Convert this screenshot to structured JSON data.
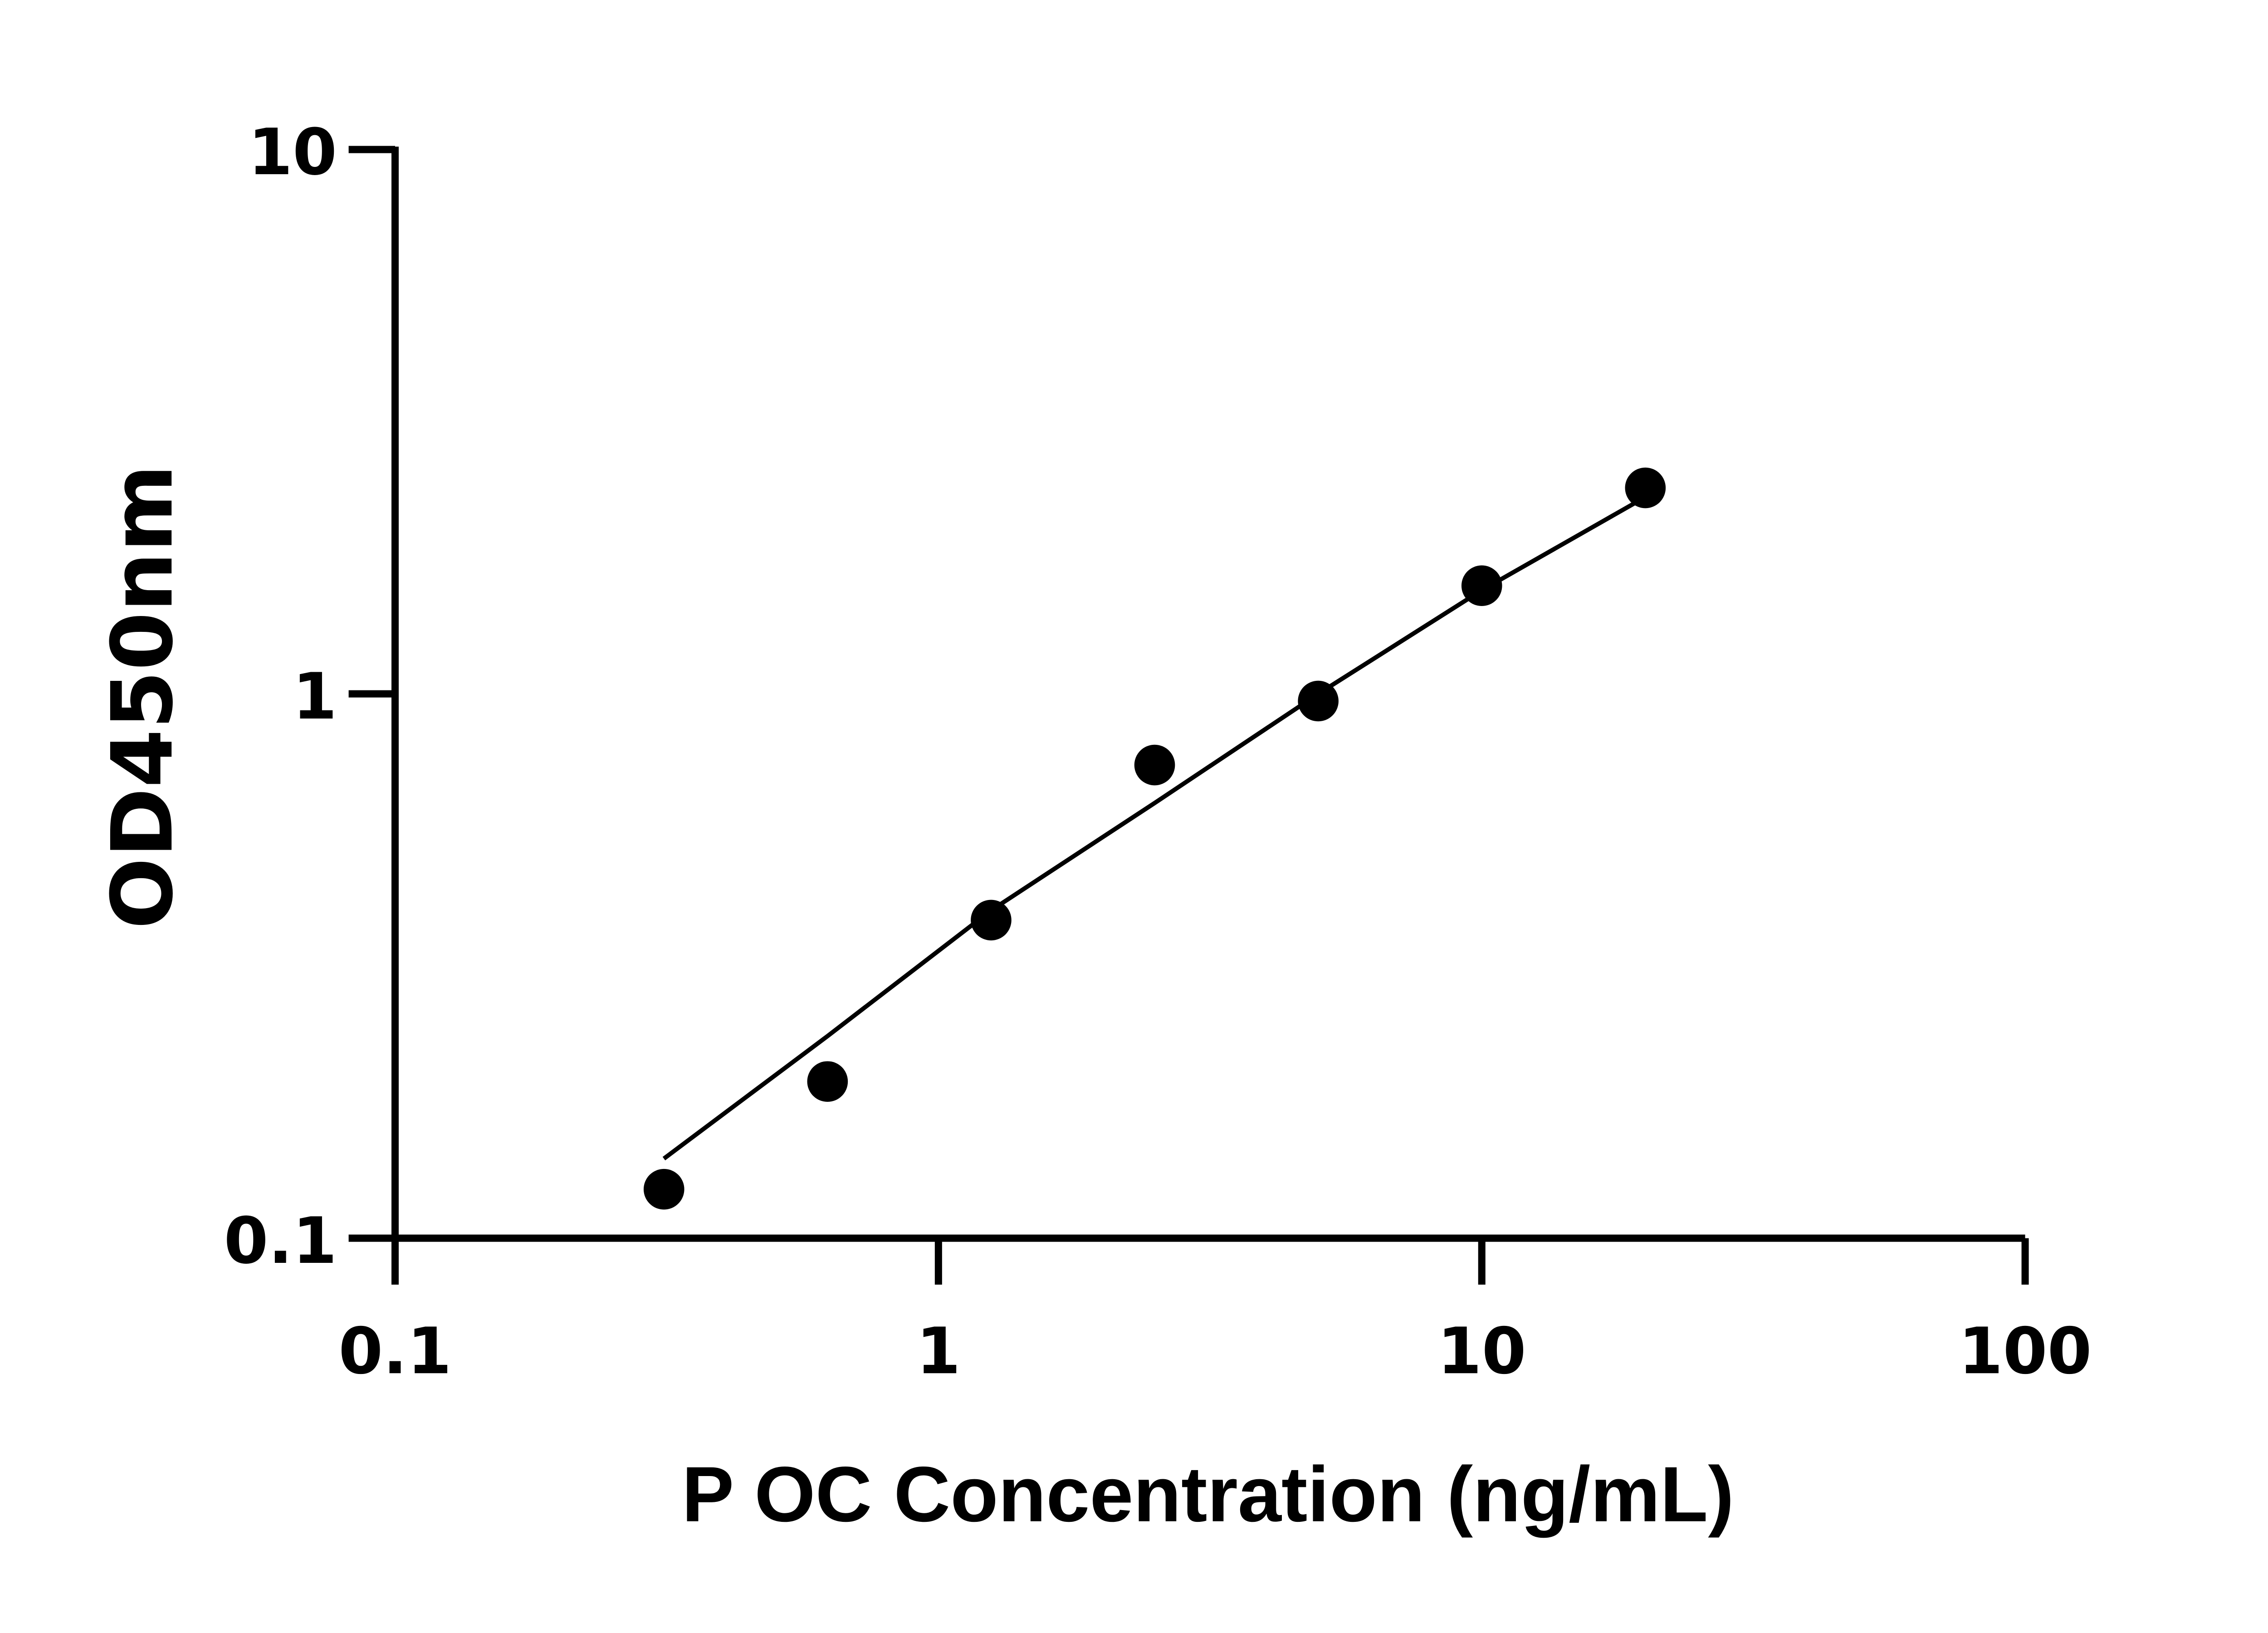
{
  "chart_data": {
    "type": "scatter",
    "xlabel": "P OC Concentration (ng/mL)",
    "ylabel": "OD450nm",
    "xscale": "log",
    "yscale": "log",
    "xlim": [
      0.1,
      100
    ],
    "ylim": [
      0.1,
      10
    ],
    "x_ticks": [
      "0.1",
      "1",
      "10",
      "100"
    ],
    "y_ticks": [
      "0.1",
      "1",
      "10"
    ],
    "grid": false,
    "points": {
      "x": [
        0.3125,
        0.625,
        1.25,
        2.5,
        5,
        10,
        20
      ],
      "y": [
        0.123,
        0.194,
        0.384,
        0.74,
        0.97,
        1.58,
        2.39
      ]
    },
    "fit_curve": {
      "x": [
        0.3125,
        0.625,
        1.25,
        2.5,
        5,
        10,
        20
      ],
      "y": [
        0.14,
        0.235,
        0.4,
        0.63,
        1.0,
        1.55,
        2.3
      ]
    },
    "colors": {
      "points": "#000000",
      "line": "#000000",
      "axes": "#000000"
    }
  }
}
